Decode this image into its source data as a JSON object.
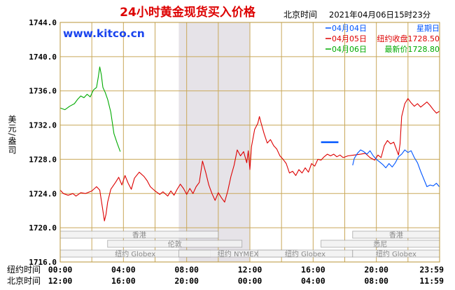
{
  "chart_data": {
    "type": "line",
    "title": "24小时黄金现货买入价格",
    "timestamp_label": "北京时间",
    "timestamp": "2021年04月06日15时23分",
    "watermark": "www.kitco.cn",
    "ylabel": "美元/盎司",
    "ylim": [
      1716.0,
      1744.0
    ],
    "yticks": [
      "1744.0",
      "1740.0",
      "1736.0",
      "1732.0",
      "1728.0",
      "1724.0",
      "1720.0",
      "1716.0"
    ],
    "ytick_values": [
      1744,
      1740,
      1736,
      1732,
      1728,
      1724,
      1720,
      1716
    ],
    "x_unit": "hours (New York time, 0-24)",
    "xlim": [
      0,
      24
    ],
    "x_rows": [
      {
        "label": "纽约时间",
        "ticks": [
          "00:00",
          "04:00",
          "08:00",
          "12:00",
          "16:00",
          "20:00",
          "23:59"
        ]
      },
      {
        "label": "北京时间",
        "ticks": [
          "12:00",
          "16:00",
          "20:00",
          "00:00",
          "04:00",
          "08:00",
          "11:59"
        ]
      }
    ],
    "xtick_positions": [
      0,
      4,
      8,
      12,
      16,
      20,
      23.98
    ],
    "shaded_region": [
      7.5,
      12.0
    ],
    "legend": [
      {
        "date": "04月04日",
        "text": "星期日",
        "color": "#0055ff"
      },
      {
        "date": "04月05日",
        "text": "纽约收盘1728.50",
        "color": "#dd0000"
      },
      {
        "date": "04月06日",
        "text": "最新价1728.80",
        "color": "#00aa00"
      }
    ],
    "markets": [
      {
        "name": "香港",
        "row": 0,
        "start": 0.0,
        "end": 10.0
      },
      {
        "name": "伦敦",
        "row": 1,
        "start": 3.0,
        "end": 11.5
      },
      {
        "name": "纽约 Globex",
        "row": 2,
        "start": 0.0,
        "end": 9.5
      },
      {
        "name": "纽约 NYMEX",
        "row": 2,
        "start": 7.5,
        "end": 15.0
      },
      {
        "name": "纽约 Globex",
        "row": 2,
        "start": 12.5,
        "end": 18.5
      },
      {
        "name": "香港",
        "row": 0,
        "start": 18.5,
        "end": 24.0
      },
      {
        "name": "悉尼",
        "row": 1,
        "start": 16.5,
        "end": 24.0
      },
      {
        "name": "纽约 Globex",
        "row": 2,
        "start": 18.5,
        "end": 24.0
      }
    ],
    "series": [
      {
        "name": "04月05日",
        "color": "#dd0000",
        "points": [
          [
            0,
            1724.4
          ],
          [
            0.2,
            1724.0
          ],
          [
            0.5,
            1723.8
          ],
          [
            0.8,
            1724.0
          ],
          [
            1.0,
            1723.7
          ],
          [
            1.3,
            1724.1
          ],
          [
            1.6,
            1724.0
          ],
          [
            2.0,
            1724.3
          ],
          [
            2.3,
            1724.8
          ],
          [
            2.5,
            1724.4
          ],
          [
            2.7,
            1722.0
          ],
          [
            2.8,
            1720.8
          ],
          [
            2.9,
            1721.6
          ],
          [
            3.0,
            1723.0
          ],
          [
            3.2,
            1724.5
          ],
          [
            3.5,
            1725.3
          ],
          [
            3.7,
            1725.9
          ],
          [
            3.9,
            1725.0
          ],
          [
            4.1,
            1726.1
          ],
          [
            4.3,
            1725.2
          ],
          [
            4.5,
            1724.5
          ],
          [
            4.7,
            1725.8
          ],
          [
            5.0,
            1726.5
          ],
          [
            5.3,
            1726.0
          ],
          [
            5.5,
            1725.5
          ],
          [
            5.7,
            1724.8
          ],
          [
            6.0,
            1724.3
          ],
          [
            6.3,
            1723.9
          ],
          [
            6.5,
            1724.2
          ],
          [
            6.8,
            1723.7
          ],
          [
            7.0,
            1724.3
          ],
          [
            7.2,
            1723.8
          ],
          [
            7.4,
            1724.5
          ],
          [
            7.6,
            1725.1
          ],
          [
            7.8,
            1724.6
          ],
          [
            8.0,
            1723.9
          ],
          [
            8.2,
            1724.6
          ],
          [
            8.4,
            1724.0
          ],
          [
            8.6,
            1724.8
          ],
          [
            8.8,
            1725.3
          ],
          [
            9.0,
            1727.8
          ],
          [
            9.2,
            1726.5
          ],
          [
            9.4,
            1725.0
          ],
          [
            9.6,
            1724.0
          ],
          [
            9.8,
            1723.2
          ],
          [
            10.0,
            1724.1
          ],
          [
            10.2,
            1723.5
          ],
          [
            10.4,
            1723.0
          ],
          [
            10.6,
            1724.3
          ],
          [
            10.8,
            1726.0
          ],
          [
            11.0,
            1727.3
          ],
          [
            11.2,
            1729.1
          ],
          [
            11.4,
            1728.4
          ],
          [
            11.6,
            1728.9
          ],
          [
            11.8,
            1727.6
          ],
          [
            11.9,
            1729.0
          ],
          [
            12.0,
            1726.8
          ],
          [
            12.1,
            1729.5
          ],
          [
            12.3,
            1731.5
          ],
          [
            12.5,
            1732.2
          ],
          [
            12.6,
            1733.0
          ],
          [
            12.7,
            1732.3
          ],
          [
            12.9,
            1731.0
          ],
          [
            13.1,
            1729.9
          ],
          [
            13.3,
            1730.3
          ],
          [
            13.5,
            1729.6
          ],
          [
            13.7,
            1729.2
          ],
          [
            13.9,
            1728.4
          ],
          [
            14.1,
            1728.0
          ],
          [
            14.3,
            1727.5
          ],
          [
            14.5,
            1726.4
          ],
          [
            14.7,
            1726.6
          ],
          [
            14.9,
            1726.1
          ],
          [
            15.1,
            1726.8
          ],
          [
            15.3,
            1726.4
          ],
          [
            15.5,
            1727.0
          ],
          [
            15.7,
            1726.5
          ],
          [
            15.9,
            1727.5
          ],
          [
            16.1,
            1727.2
          ],
          [
            16.3,
            1728.0
          ],
          [
            16.5,
            1727.9
          ],
          [
            16.7,
            1728.3
          ],
          [
            16.9,
            1728.6
          ],
          [
            17.1,
            1728.4
          ],
          [
            17.3,
            1728.6
          ],
          [
            17.5,
            1728.3
          ],
          [
            17.7,
            1728.5
          ],
          [
            17.9,
            1728.2
          ],
          [
            18.2,
            1728.4
          ],
          [
            18.6,
            1728.5
          ],
          [
            19.0,
            1728.6
          ],
          [
            19.3,
            1728.7
          ],
          [
            19.6,
            1728.2
          ],
          [
            19.9,
            1727.9
          ],
          [
            20.1,
            1728.5
          ],
          [
            20.3,
            1728.2
          ],
          [
            20.5,
            1729.6
          ],
          [
            20.7,
            1730.2
          ],
          [
            20.9,
            1729.8
          ],
          [
            21.1,
            1730.0
          ],
          [
            21.3,
            1729.0
          ],
          [
            21.4,
            1728.5
          ],
          [
            21.5,
            1729.8
          ],
          [
            21.6,
            1733.0
          ],
          [
            21.8,
            1734.5
          ],
          [
            22.0,
            1735.1
          ],
          [
            22.2,
            1734.6
          ],
          [
            22.4,
            1734.2
          ],
          [
            22.6,
            1734.5
          ],
          [
            22.8,
            1734.1
          ],
          [
            23.0,
            1734.4
          ],
          [
            23.2,
            1734.7
          ],
          [
            23.4,
            1734.3
          ],
          [
            23.6,
            1733.8
          ],
          [
            23.8,
            1733.4
          ],
          [
            23.98,
            1733.6
          ]
        ]
      },
      {
        "name": "04月04日",
        "color": "#0055ff",
        "points": [
          [
            18.5,
            1727.3
          ],
          [
            18.6,
            1728.1
          ],
          [
            18.8,
            1728.7
          ],
          [
            19.0,
            1729.1
          ],
          [
            19.2,
            1728.9
          ],
          [
            19.4,
            1728.6
          ],
          [
            19.6,
            1729.0
          ],
          [
            19.8,
            1728.4
          ],
          [
            20.0,
            1728.0
          ],
          [
            20.2,
            1727.7
          ],
          [
            20.4,
            1727.4
          ],
          [
            20.6,
            1727.0
          ],
          [
            20.8,
            1727.5
          ],
          [
            21.0,
            1727.1
          ],
          [
            21.2,
            1727.6
          ],
          [
            21.4,
            1728.3
          ],
          [
            21.6,
            1728.6
          ],
          [
            21.8,
            1729.1
          ],
          [
            22.0,
            1728.8
          ],
          [
            22.2,
            1729.0
          ],
          [
            22.4,
            1728.2
          ],
          [
            22.6,
            1727.6
          ],
          [
            22.8,
            1726.6
          ],
          [
            23.0,
            1725.7
          ],
          [
            23.2,
            1724.8
          ],
          [
            23.4,
            1725.0
          ],
          [
            23.6,
            1724.9
          ],
          [
            23.8,
            1725.2
          ],
          [
            23.98,
            1724.8
          ]
        ]
      },
      {
        "name": "04月06日",
        "color": "#00aa00",
        "points": [
          [
            0,
            1734.0
          ],
          [
            0.3,
            1733.8
          ],
          [
            0.6,
            1734.2
          ],
          [
            0.9,
            1734.5
          ],
          [
            1.1,
            1735.0
          ],
          [
            1.3,
            1735.4
          ],
          [
            1.5,
            1735.2
          ],
          [
            1.7,
            1735.6
          ],
          [
            1.9,
            1735.3
          ],
          [
            2.1,
            1736.1
          ],
          [
            2.3,
            1736.4
          ],
          [
            2.4,
            1737.5
          ],
          [
            2.5,
            1738.8
          ],
          [
            2.6,
            1737.9
          ],
          [
            2.7,
            1736.4
          ],
          [
            2.85,
            1735.8
          ],
          [
            3.0,
            1735.0
          ],
          [
            3.2,
            1733.5
          ],
          [
            3.4,
            1731.0
          ],
          [
            3.6,
            1729.9
          ],
          [
            3.8,
            1728.9
          ]
        ]
      }
    ],
    "marker": {
      "name": "纽约收盘",
      "color": "#0055ff",
      "x": 16.5,
      "x2": 17.6,
      "value": 1730.0
    }
  }
}
